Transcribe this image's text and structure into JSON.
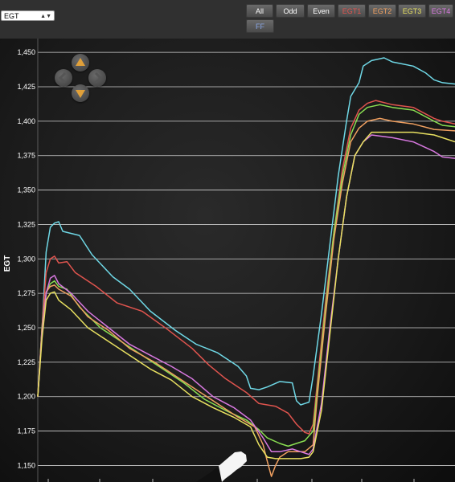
{
  "selector": {
    "value": "EGT",
    "icon": "chevron-updown-icon"
  },
  "buttons": [
    "All",
    "Odd",
    "Even",
    "EGT1",
    "EGT2",
    "EGT3",
    "EGT4",
    "FF"
  ],
  "button_colors": [
    "#ffffff",
    "#ffffff",
    "#ffffff",
    "#e0544e",
    "#f0a060",
    "#e8e060",
    "#d878e0",
    "#8aa8e8"
  ],
  "nav_icons": [
    "arrow-up-icon",
    "arrow-left-icon",
    "arrow-right-icon",
    "arrow-down-icon"
  ],
  "chart_data": {
    "type": "line",
    "title": "",
    "ylabel": "EGT",
    "xlabel": "",
    "ylim": [
      1138,
      1460
    ],
    "xlim": [
      0,
      100
    ],
    "grid": true,
    "yticks": [
      1150,
      1175,
      1200,
      1225,
      1250,
      1275,
      1300,
      1325,
      1350,
      1375,
      1400,
      1425,
      1450
    ],
    "ytick_labels": [
      "1,150",
      "1,175",
      "1,200",
      "1,225",
      "1,250",
      "1,275",
      "1,300",
      "1,325",
      "1,350",
      "1,375",
      "1,400",
      "1,425",
      "1,450"
    ],
    "series": [
      {
        "color": "#6fd8e6",
        "points": [
          [
            0,
            1200
          ],
          [
            1,
            1248
          ],
          [
            2,
            1305
          ],
          [
            3,
            1323
          ],
          [
            4,
            1326
          ],
          [
            5,
            1327
          ],
          [
            6,
            1320
          ],
          [
            10,
            1317
          ],
          [
            13,
            1303
          ],
          [
            18,
            1287
          ],
          [
            22,
            1278
          ],
          [
            27,
            1262
          ],
          [
            33,
            1248
          ],
          [
            38,
            1238
          ],
          [
            43,
            1232
          ],
          [
            48,
            1222
          ],
          [
            50,
            1215
          ],
          [
            51,
            1206
          ],
          [
            53,
            1205
          ],
          [
            55,
            1207
          ],
          [
            58,
            1211
          ],
          [
            61,
            1210
          ],
          [
            62,
            1197
          ],
          [
            63,
            1194
          ],
          [
            65,
            1196
          ],
          [
            66,
            1215
          ],
          [
            68,
            1260
          ],
          [
            70,
            1310
          ],
          [
            72,
            1360
          ],
          [
            74,
            1400
          ],
          [
            75,
            1418
          ],
          [
            77,
            1428
          ],
          [
            78,
            1440
          ],
          [
            80,
            1444
          ],
          [
            83,
            1446
          ],
          [
            85,
            1443
          ],
          [
            90,
            1440
          ],
          [
            93,
            1435
          ],
          [
            95,
            1430
          ],
          [
            97,
            1428
          ],
          [
            100,
            1427
          ]
        ]
      },
      {
        "color": "#e0544e",
        "points": [
          [
            0,
            1200
          ],
          [
            1,
            1250
          ],
          [
            2,
            1290
          ],
          [
            3,
            1300
          ],
          [
            4,
            1302
          ],
          [
            5,
            1297
          ],
          [
            7,
            1298
          ],
          [
            9,
            1290
          ],
          [
            14,
            1280
          ],
          [
            19,
            1268
          ],
          [
            25,
            1262
          ],
          [
            31,
            1249
          ],
          [
            37,
            1235
          ],
          [
            41,
            1223
          ],
          [
            45,
            1213
          ],
          [
            50,
            1203
          ],
          [
            53,
            1195
          ],
          [
            57,
            1193
          ],
          [
            60,
            1188
          ],
          [
            62,
            1180
          ],
          [
            64,
            1174
          ],
          [
            65,
            1173
          ],
          [
            66,
            1180
          ],
          [
            67,
            1210
          ],
          [
            69,
            1270
          ],
          [
            71,
            1320
          ],
          [
            73,
            1365
          ],
          [
            75,
            1395
          ],
          [
            77,
            1408
          ],
          [
            79,
            1413
          ],
          [
            81,
            1415
          ],
          [
            85,
            1412
          ],
          [
            90,
            1410
          ],
          [
            95,
            1402
          ],
          [
            97,
            1400
          ],
          [
            100,
            1398
          ]
        ]
      },
      {
        "color": "#8adf52",
        "points": [
          [
            0,
            1200
          ],
          [
            1,
            1250
          ],
          [
            2,
            1275
          ],
          [
            3,
            1282
          ],
          [
            4,
            1284
          ],
          [
            5,
            1280
          ],
          [
            7,
            1278
          ],
          [
            10,
            1265
          ],
          [
            15,
            1250
          ],
          [
            20,
            1240
          ],
          [
            25,
            1230
          ],
          [
            30,
            1220
          ],
          [
            35,
            1210
          ],
          [
            40,
            1198
          ],
          [
            45,
            1190
          ],
          [
            50,
            1183
          ],
          [
            53,
            1176
          ],
          [
            55,
            1170
          ],
          [
            58,
            1166
          ],
          [
            60,
            1164
          ],
          [
            62,
            1166
          ],
          [
            64,
            1168
          ],
          [
            66,
            1175
          ],
          [
            67,
            1205
          ],
          [
            69,
            1265
          ],
          [
            71,
            1320
          ],
          [
            73,
            1360
          ],
          [
            75,
            1390
          ],
          [
            77,
            1405
          ],
          [
            79,
            1410
          ],
          [
            82,
            1412
          ],
          [
            85,
            1410
          ],
          [
            90,
            1408
          ],
          [
            95,
            1400
          ],
          [
            97,
            1397
          ],
          [
            100,
            1396
          ]
        ]
      },
      {
        "color": "#f0a060",
        "points": [
          [
            0,
            1200
          ],
          [
            1,
            1248
          ],
          [
            2,
            1276
          ],
          [
            3,
            1280
          ],
          [
            4,
            1281
          ],
          [
            5,
            1278
          ],
          [
            8,
            1273
          ],
          [
            12,
            1258
          ],
          [
            17,
            1248
          ],
          [
            22,
            1235
          ],
          [
            28,
            1225
          ],
          [
            33,
            1215
          ],
          [
            38,
            1205
          ],
          [
            43,
            1195
          ],
          [
            48,
            1185
          ],
          [
            52,
            1178
          ],
          [
            54,
            1165
          ],
          [
            55,
            1153
          ],
          [
            56,
            1142
          ],
          [
            57,
            1150
          ],
          [
            58,
            1156
          ],
          [
            60,
            1160
          ],
          [
            62,
            1160
          ],
          [
            64,
            1160
          ],
          [
            66,
            1165
          ],
          [
            67,
            1200
          ],
          [
            69,
            1260
          ],
          [
            71,
            1315
          ],
          [
            73,
            1355
          ],
          [
            75,
            1385
          ],
          [
            77,
            1395
          ],
          [
            79,
            1400
          ],
          [
            82,
            1402
          ],
          [
            85,
            1400
          ],
          [
            90,
            1398
          ],
          [
            95,
            1394
          ],
          [
            100,
            1393
          ]
        ]
      },
      {
        "color": "#d878e0",
        "points": [
          [
            0,
            1200
          ],
          [
            1,
            1245
          ],
          [
            2,
            1275
          ],
          [
            3,
            1286
          ],
          [
            4,
            1288
          ],
          [
            5,
            1282
          ],
          [
            8,
            1275
          ],
          [
            12,
            1262
          ],
          [
            17,
            1250
          ],
          [
            22,
            1238
          ],
          [
            27,
            1230
          ],
          [
            32,
            1222
          ],
          [
            37,
            1213
          ],
          [
            42,
            1200
          ],
          [
            47,
            1192
          ],
          [
            51,
            1183
          ],
          [
            54,
            1170
          ],
          [
            56,
            1160
          ],
          [
            58,
            1160
          ],
          [
            61,
            1162
          ],
          [
            63,
            1160
          ],
          [
            65,
            1158
          ],
          [
            66,
            1162
          ],
          [
            68,
            1195
          ],
          [
            70,
            1250
          ],
          [
            72,
            1300
          ],
          [
            74,
            1345
          ],
          [
            76,
            1375
          ],
          [
            78,
            1385
          ],
          [
            80,
            1390
          ],
          [
            85,
            1388
          ],
          [
            90,
            1385
          ],
          [
            95,
            1378
          ],
          [
            97,
            1374
          ],
          [
            100,
            1373
          ]
        ]
      },
      {
        "color": "#e8e060",
        "points": [
          [
            0,
            1200
          ],
          [
            1,
            1242
          ],
          [
            2,
            1270
          ],
          [
            3,
            1275
          ],
          [
            4,
            1276
          ],
          [
            5,
            1270
          ],
          [
            8,
            1263
          ],
          [
            12,
            1250
          ],
          [
            17,
            1240
          ],
          [
            22,
            1230
          ],
          [
            27,
            1220
          ],
          [
            32,
            1212
          ],
          [
            37,
            1200
          ],
          [
            42,
            1192
          ],
          [
            47,
            1185
          ],
          [
            51,
            1178
          ],
          [
            53,
            1165
          ],
          [
            55,
            1156
          ],
          [
            57,
            1155
          ],
          [
            60,
            1155
          ],
          [
            63,
            1155
          ],
          [
            65,
            1156
          ],
          [
            66,
            1160
          ],
          [
            68,
            1190
          ],
          [
            70,
            1245
          ],
          [
            72,
            1300
          ],
          [
            74,
            1345
          ],
          [
            76,
            1375
          ],
          [
            78,
            1385
          ],
          [
            80,
            1392
          ],
          [
            85,
            1392
          ],
          [
            90,
            1392
          ],
          [
            95,
            1390
          ],
          [
            100,
            1385
          ]
        ]
      }
    ]
  }
}
